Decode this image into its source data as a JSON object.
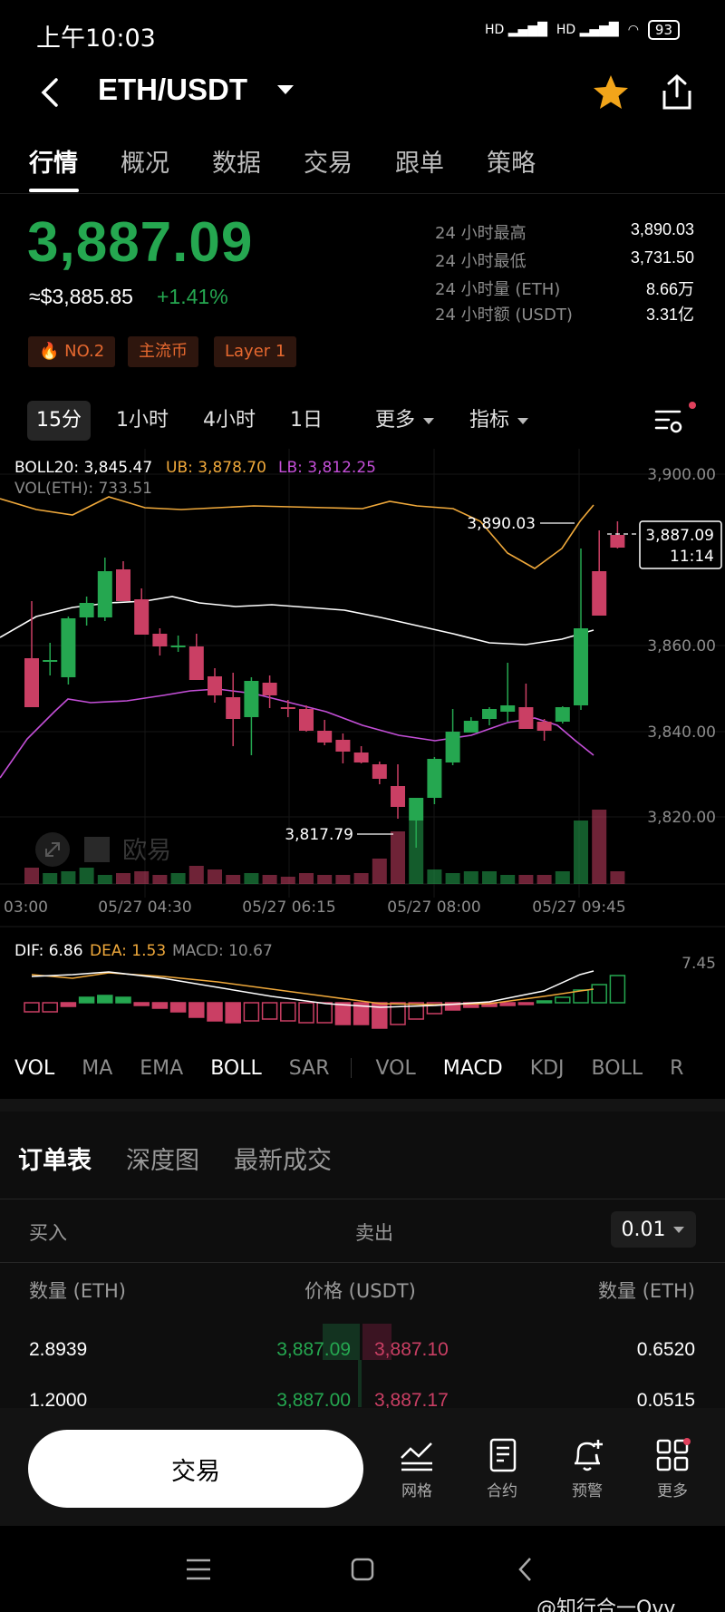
{
  "status": {
    "time": "上午10:03",
    "battery": "93"
  },
  "header": {
    "pair": "ETH/USDT"
  },
  "tabs": [
    "行情",
    "概况",
    "数据",
    "交易",
    "跟单",
    "策略"
  ],
  "price": {
    "last": "3,887.09",
    "usd": "≈$3,885.85",
    "change": "+1.41%"
  },
  "tags": [
    "NO.2",
    "主流币",
    "Layer 1"
  ],
  "stats": [
    {
      "label": "24 小时最高",
      "value": "3,890.03"
    },
    {
      "label": "24 小时最低",
      "value": "3,731.50"
    },
    {
      "label": "24 小时量 (ETH)",
      "value": "8.66万"
    },
    {
      "label": "24 小时额 (USDT)",
      "value": "3.31亿"
    }
  ],
  "timeframes": [
    "15分",
    "1小时",
    "4小时",
    "1日"
  ],
  "tf_more": "更多",
  "tf_indicators": "指标",
  "chart": {
    "boll_mid": "BOLL20: 3,845.47",
    "boll_ub": "UB: 3,878.70",
    "boll_lb": "LB: 3,812.25",
    "vol": "VOL(ETH): 733.51",
    "y_labels": [
      "3,900.00",
      "3,860.00",
      "3,840.00",
      "3,820.00"
    ],
    "high_label": "3,890.03",
    "low_label": "3,817.79",
    "cur_price": "3,887.09",
    "cur_time": "11:14",
    "x_labels": [
      "03:00",
      "05/27 04:30",
      "05/27 06:15",
      "05/27 08:00",
      "05/27 09:45"
    ],
    "macd_dif": "DIF: 6.86",
    "macd_dea": "DEA: 1.53",
    "macd_val": "MACD: 10.67",
    "macd_y": "7.45",
    "watermark": "欧易"
  },
  "indicators": [
    "VOL",
    "MA",
    "EMA",
    "BOLL",
    "SAR",
    "VOL",
    "MACD",
    "KDJ",
    "BOLL",
    "R"
  ],
  "book": {
    "tabs": [
      "订单表",
      "深度图",
      "最新成交"
    ],
    "buy": "买入",
    "sell": "卖出",
    "tick": "0.01",
    "col_qty_buy": "数量 (ETH)",
    "col_price": "价格 (USDT)",
    "col_qty_sell": "数量 (ETH)",
    "rows": [
      {
        "bid_qty": "2.8939",
        "bid": "3,887.09",
        "ask": "3,887.10",
        "ask_qty": "0.6520"
      },
      {
        "bid_qty": "1.2000",
        "bid": "3,887.00",
        "ask": "3,887.17",
        "ask_qty": "0.0515"
      }
    ]
  },
  "nav": {
    "trade": "交易",
    "items": [
      "网格",
      "合约",
      "预警",
      "更多"
    ]
  },
  "watermark": "@知行合一Ovv",
  "colors": {
    "up": "#25a750",
    "down": "#ca3f64",
    "ub": "#f0a93b",
    "lb": "#c44fd8"
  }
}
